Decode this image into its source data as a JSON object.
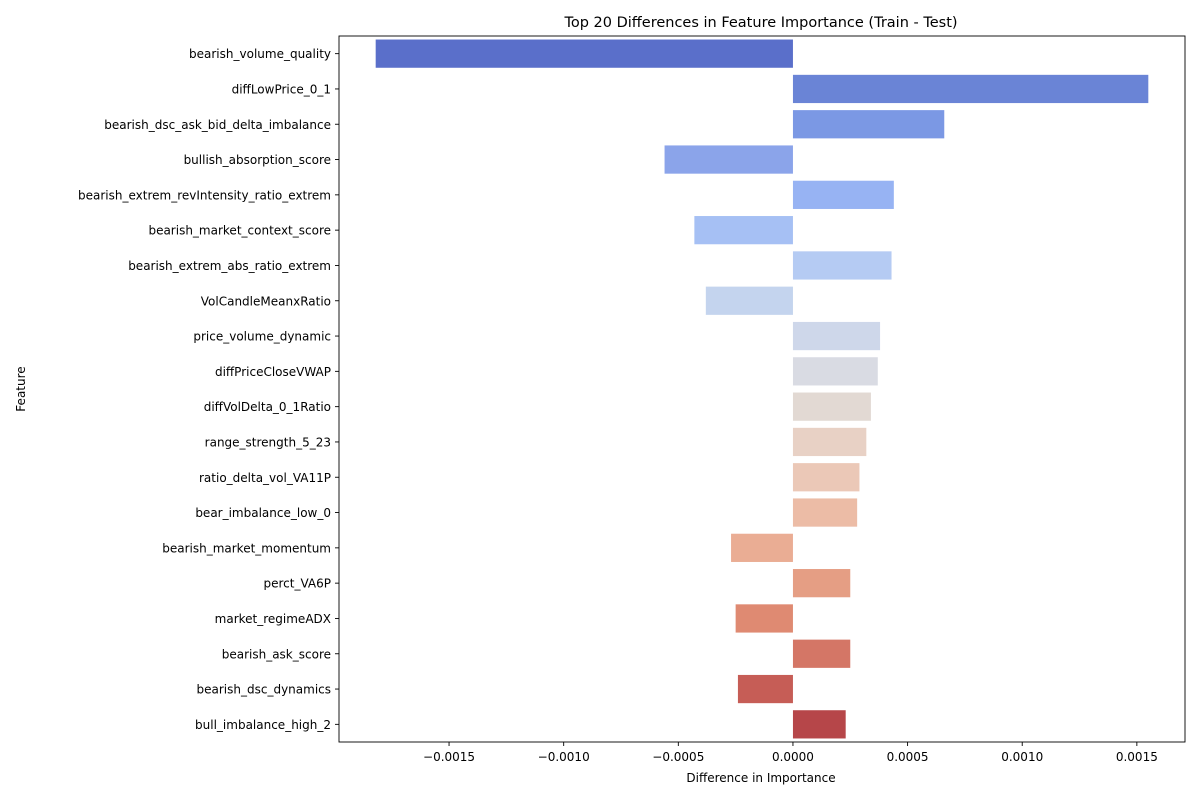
{
  "chart_data": {
    "type": "bar",
    "orientation": "horizontal",
    "title": "Top 20 Differences in Feature Importance (Train - Test)",
    "xlabel": "Difference in Importance",
    "ylabel": "Feature",
    "xlim": [
      -0.00198,
      0.00171
    ],
    "grid": false,
    "xticks": [
      -0.0015,
      -0.001,
      -0.0005,
      0.0,
      0.0005,
      0.001,
      0.0015
    ],
    "xtick_labels": [
      "−0.0015",
      "−0.0010",
      "−0.0005",
      "0.0000",
      "0.0005",
      "0.0010",
      "0.0015"
    ],
    "categories": [
      "bearish_volume_quality",
      "diffLowPrice_0_1",
      "bearish_dsc_ask_bid_delta_imbalance",
      "bullish_absorption_score",
      "bearish_extrem_revIntensity_ratio_extrem",
      "bearish_market_context_score",
      "bearish_extrem_abs_ratio_extrem",
      "VolCandleMeanxRatio",
      "price_volume_dynamic",
      "diffPriceCloseVWAP",
      "diffVolDelta_0_1Ratio",
      "range_strength_5_23",
      "ratio_delta_vol_VA11P",
      "bear_imbalance_low_0",
      "bearish_market_momentum",
      "perct_VA6P",
      "market_regimeADX",
      "bearish_ask_score",
      "bearish_dsc_dynamics",
      "bull_imbalance_high_2"
    ],
    "values": [
      -0.00182,
      0.00155,
      0.00066,
      -0.00056,
      0.00044,
      -0.00043,
      0.00043,
      -0.00038,
      0.00038,
      0.00037,
      0.00034,
      0.00032,
      0.00029,
      0.00028,
      -0.00027,
      0.00025,
      -0.00025,
      0.00025,
      -0.00024,
      0.00023
    ],
    "colors": [
      "#5a6fca",
      "#6a84d6",
      "#7b98e4",
      "#8ba4ea",
      "#97b3f3",
      "#a6c0f4",
      "#b5cbf3",
      "#c4d4ee",
      "#ced7ea",
      "#d9dbe3",
      "#e2d9d3",
      "#e8d1c5",
      "#ebc8b7",
      "#ecbca6",
      "#eaad94",
      "#e59e84",
      "#df8a72",
      "#d47666",
      "#c65d56",
      "#b64649"
    ]
  }
}
